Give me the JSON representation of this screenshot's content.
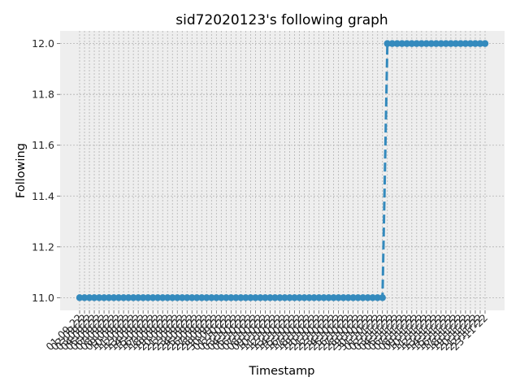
{
  "chart_data": {
    "type": "line",
    "title": "sid72020123's following graph",
    "xlabel": "Timestamp",
    "ylabel": "Following",
    "ylim": [
      10.95,
      12.05
    ],
    "y_ticks": [
      "11.0",
      "11.2",
      "11.4",
      "11.6",
      "11.8",
      "12.0"
    ],
    "grid": true,
    "line_style": "dashed",
    "marker": "circle",
    "color": "#348ABD",
    "background": "#EEEEEE",
    "categories": [
      "01-09-22",
      "02-09-22",
      "03-09-22",
      "04-09-22",
      "05-09-22",
      "06-09-22",
      "07-09-22",
      "08-09-22",
      "09-09-22",
      "10-09-22",
      "11-09-22",
      "12-09-22",
      "13-09-22",
      "14-09-22",
      "15-09-22",
      "16-09-22",
      "17-09-22",
      "18-09-22",
      "19-09-22",
      "20-09-22",
      "21-09-22",
      "22-09-22",
      "23-09-22",
      "24-09-22",
      "25-09-22",
      "26-09-22",
      "27-09-22",
      "28-09-22",
      "29-09-22",
      "30-09-22",
      "01-10-22",
      "02-10-22",
      "03-10-22",
      "04-10-22",
      "05-10-22",
      "06-10-22",
      "07-10-22",
      "08-10-22",
      "09-10-22",
      "10-10-22",
      "11-10-22",
      "12-10-22",
      "13-10-22",
      "14-10-22",
      "15-10-22",
      "16-10-22",
      "17-10-22",
      "18-10-22",
      "19-10-22",
      "20-10-22",
      "21-10-22",
      "22-10-22",
      "23-10-22",
      "24-10-22",
      "25-10-22",
      "26-10-22",
      "27-10-22",
      "28-10-22",
      "29-10-22",
      "30-10-22",
      "31-10-22",
      "01-11-22",
      "02-11-22",
      "03-11-22",
      "04-11-22",
      "05-11-22",
      "06-11-22",
      "07-11-22",
      "08-11-22",
      "09-11-22",
      "10-11-22",
      "11-11-22",
      "12-11-22",
      "13-11-22",
      "14-11-22",
      "15-11-22",
      "16-11-22",
      "17-11-22",
      "18-11-22",
      "19-11-22",
      "20-11-22",
      "21-11-22",
      "22-11-22",
      "23-11-22"
    ],
    "values": [
      11,
      11,
      11,
      11,
      11,
      11,
      11,
      11,
      11,
      11,
      11,
      11,
      11,
      11,
      11,
      11,
      11,
      11,
      11,
      11,
      11,
      11,
      11,
      11,
      11,
      11,
      11,
      11,
      11,
      11,
      11,
      11,
      11,
      11,
      11,
      11,
      11,
      11,
      11,
      11,
      11,
      11,
      11,
      11,
      11,
      11,
      11,
      11,
      11,
      11,
      11,
      11,
      11,
      11,
      11,
      11,
      11,
      11,
      11,
      11,
      11,
      11,
      11,
      12,
      12,
      12,
      12,
      12,
      12,
      12,
      12,
      12,
      12,
      12,
      12,
      12,
      12,
      12,
      12,
      12,
      12,
      12,
      12,
      12
    ]
  }
}
